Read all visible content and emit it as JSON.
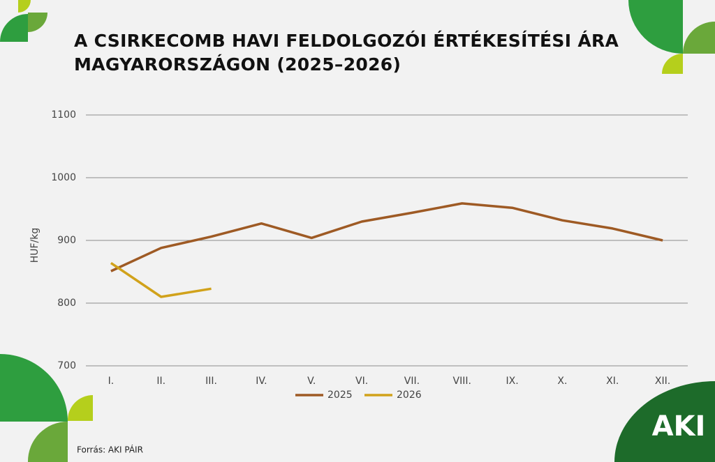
{
  "chart_data": {
    "type": "line",
    "title": "A CSIRKECOMB HAVI FELDOLGOZÓI ÉRTÉKESÍTÉSI ÁRA MAGYARORSZÁGON (2025–2026)",
    "y_label": "HUF/kg",
    "categories": [
      "I.",
      "II.",
      "III.",
      "IV.",
      "V.",
      "VI.",
      "VII.",
      "VIII.",
      "IX.",
      "X.",
      "XI.",
      "XII."
    ],
    "series": [
      {
        "name": "2025",
        "color": "#9e5a24",
        "values": [
          851,
          888,
          906,
          927,
          904,
          930,
          944,
          959,
          952,
          932,
          919,
          900
        ]
      },
      {
        "name": "2026",
        "color": "#d1a21b",
        "values": [
          864,
          810,
          823,
          null,
          null,
          null,
          null,
          null,
          null,
          null,
          null,
          null
        ]
      }
    ],
    "ylim": [
      700,
      1100
    ],
    "yticks": [
      700,
      800,
      900,
      1000,
      1100
    ],
    "grid": true,
    "legend": "bottom",
    "source": "Forrás: AKI PÁIR",
    "logo": "AKI"
  }
}
